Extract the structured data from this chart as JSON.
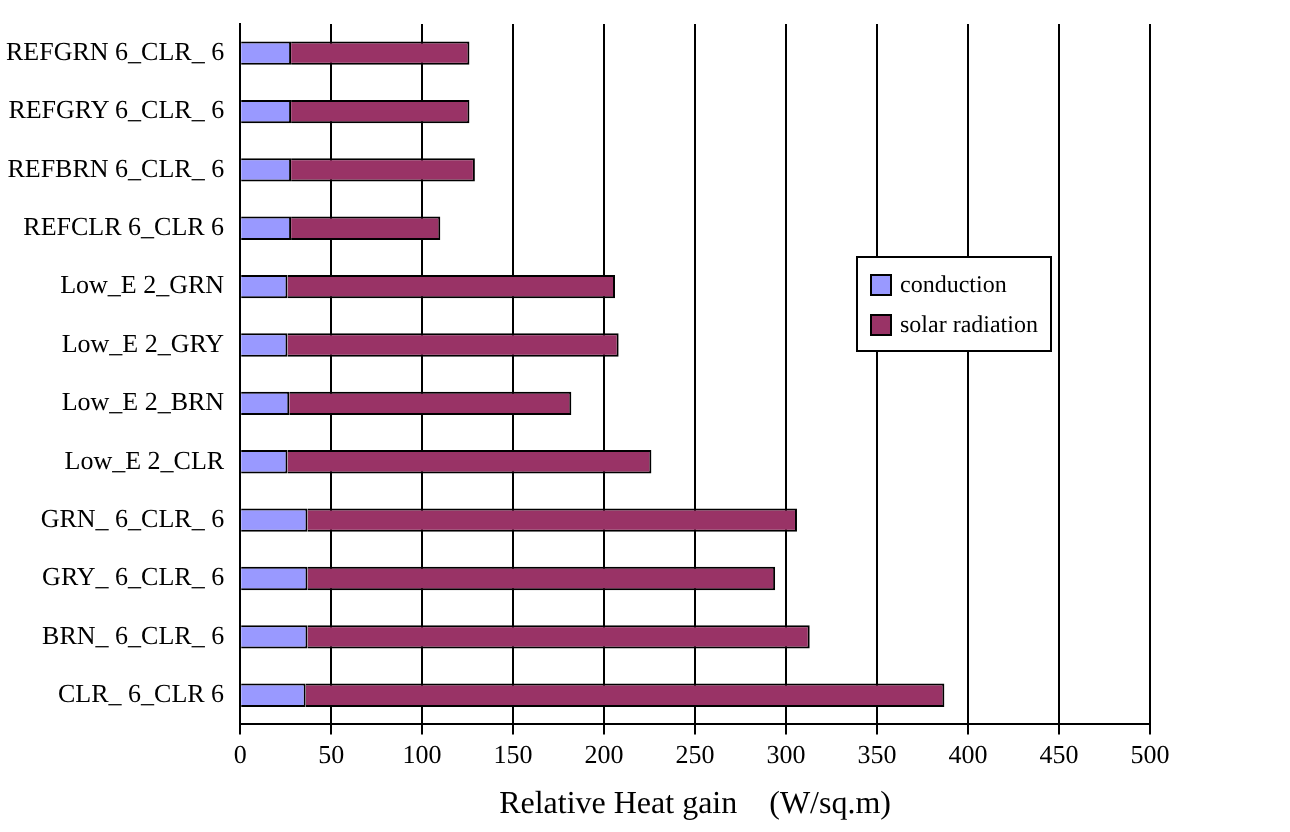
{
  "chart_data": {
    "type": "bar",
    "orientation": "horizontal",
    "stacked": true,
    "xlabel": "Relative Heat gain    (W/sq.m)",
    "categories": [
      "REFGRN 6_CLR_ 6",
      "REFGRY 6_CLR_ 6",
      "REFBRN 6_CLR_ 6",
      "REFCLR 6_CLR 6",
      "Low_E 2_GRN",
      "Low_E 2_GRY",
      "Low_E 2_BRN",
      "Low_E 2_CLR",
      "GRN_ 6_CLR_ 6",
      "GRY_ 6_CLR_ 6",
      "BRN_ 6_CLR_ 6",
      "CLR_ 6_CLR 6"
    ],
    "series": [
      {
        "name": "conduction",
        "color": "#9999ff",
        "values": [
          28,
          28,
          28,
          28,
          26,
          26,
          27,
          26,
          37,
          37,
          37,
          36
        ]
      },
      {
        "name": "solar radiation",
        "color": "#993366",
        "values": [
          98,
          98,
          101,
          82,
          180,
          182,
          155,
          200,
          269,
          257,
          276,
          351
        ]
      }
    ],
    "xlim": [
      0,
      500
    ],
    "xticks": [
      0,
      50,
      100,
      150,
      200,
      250,
      300,
      350,
      400,
      450,
      500
    ],
    "grid": "x",
    "legend": "right"
  }
}
